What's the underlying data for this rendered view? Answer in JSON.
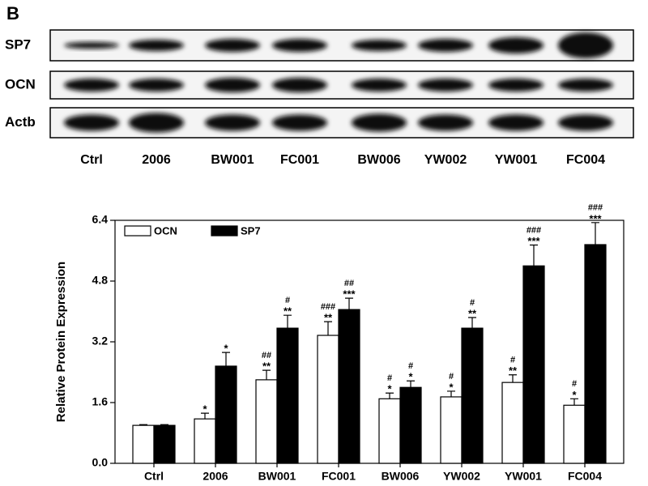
{
  "panel_label": "B",
  "blot": {
    "rows": [
      "SP7",
      "OCN",
      "Actb"
    ],
    "lanes": [
      "Ctrl",
      "2006",
      "BW001",
      "FC001",
      "BW006",
      "YW002",
      "YW001",
      "FC004"
    ]
  },
  "chart_data": {
    "type": "bar",
    "y_label": "Relative Protein Expression",
    "categories": [
      "Ctrl",
      "2006",
      "BW001",
      "FC001",
      "BW006",
      "YW002",
      "YW001",
      "FC004"
    ],
    "series": [
      {
        "name": "OCN",
        "color": "#ffffff",
        "values": [
          1.0,
          1.17,
          2.2,
          3.37,
          1.7,
          1.75,
          2.13,
          1.53
        ],
        "errors": [
          0.02,
          0.15,
          0.25,
          0.36,
          0.15,
          0.15,
          0.2,
          0.17
        ],
        "stars": [
          null,
          "*",
          "**",
          "**",
          "*",
          "*",
          "**",
          "*"
        ],
        "hashes": [
          null,
          null,
          "##",
          "###",
          "#",
          "#",
          "#",
          "#"
        ]
      },
      {
        "name": "SP7",
        "color": "#000000",
        "values": [
          1.0,
          2.56,
          3.56,
          4.05,
          2.0,
          3.56,
          5.2,
          5.76
        ],
        "errors": [
          0.02,
          0.36,
          0.34,
          0.3,
          0.17,
          0.28,
          0.55,
          0.58
        ],
        "stars": [
          null,
          "*",
          "**",
          "***",
          "*",
          "**",
          "***",
          "***"
        ],
        "hashes": [
          null,
          null,
          "#",
          "##",
          "#",
          "#",
          "###",
          "###"
        ]
      }
    ],
    "ylim": [
      0,
      6.4
    ],
    "yticks": [
      {
        "value": 0,
        "label": "0.0"
      },
      1.6,
      3.2,
      4.8,
      6.4
    ],
    "legend": "top-left"
  }
}
